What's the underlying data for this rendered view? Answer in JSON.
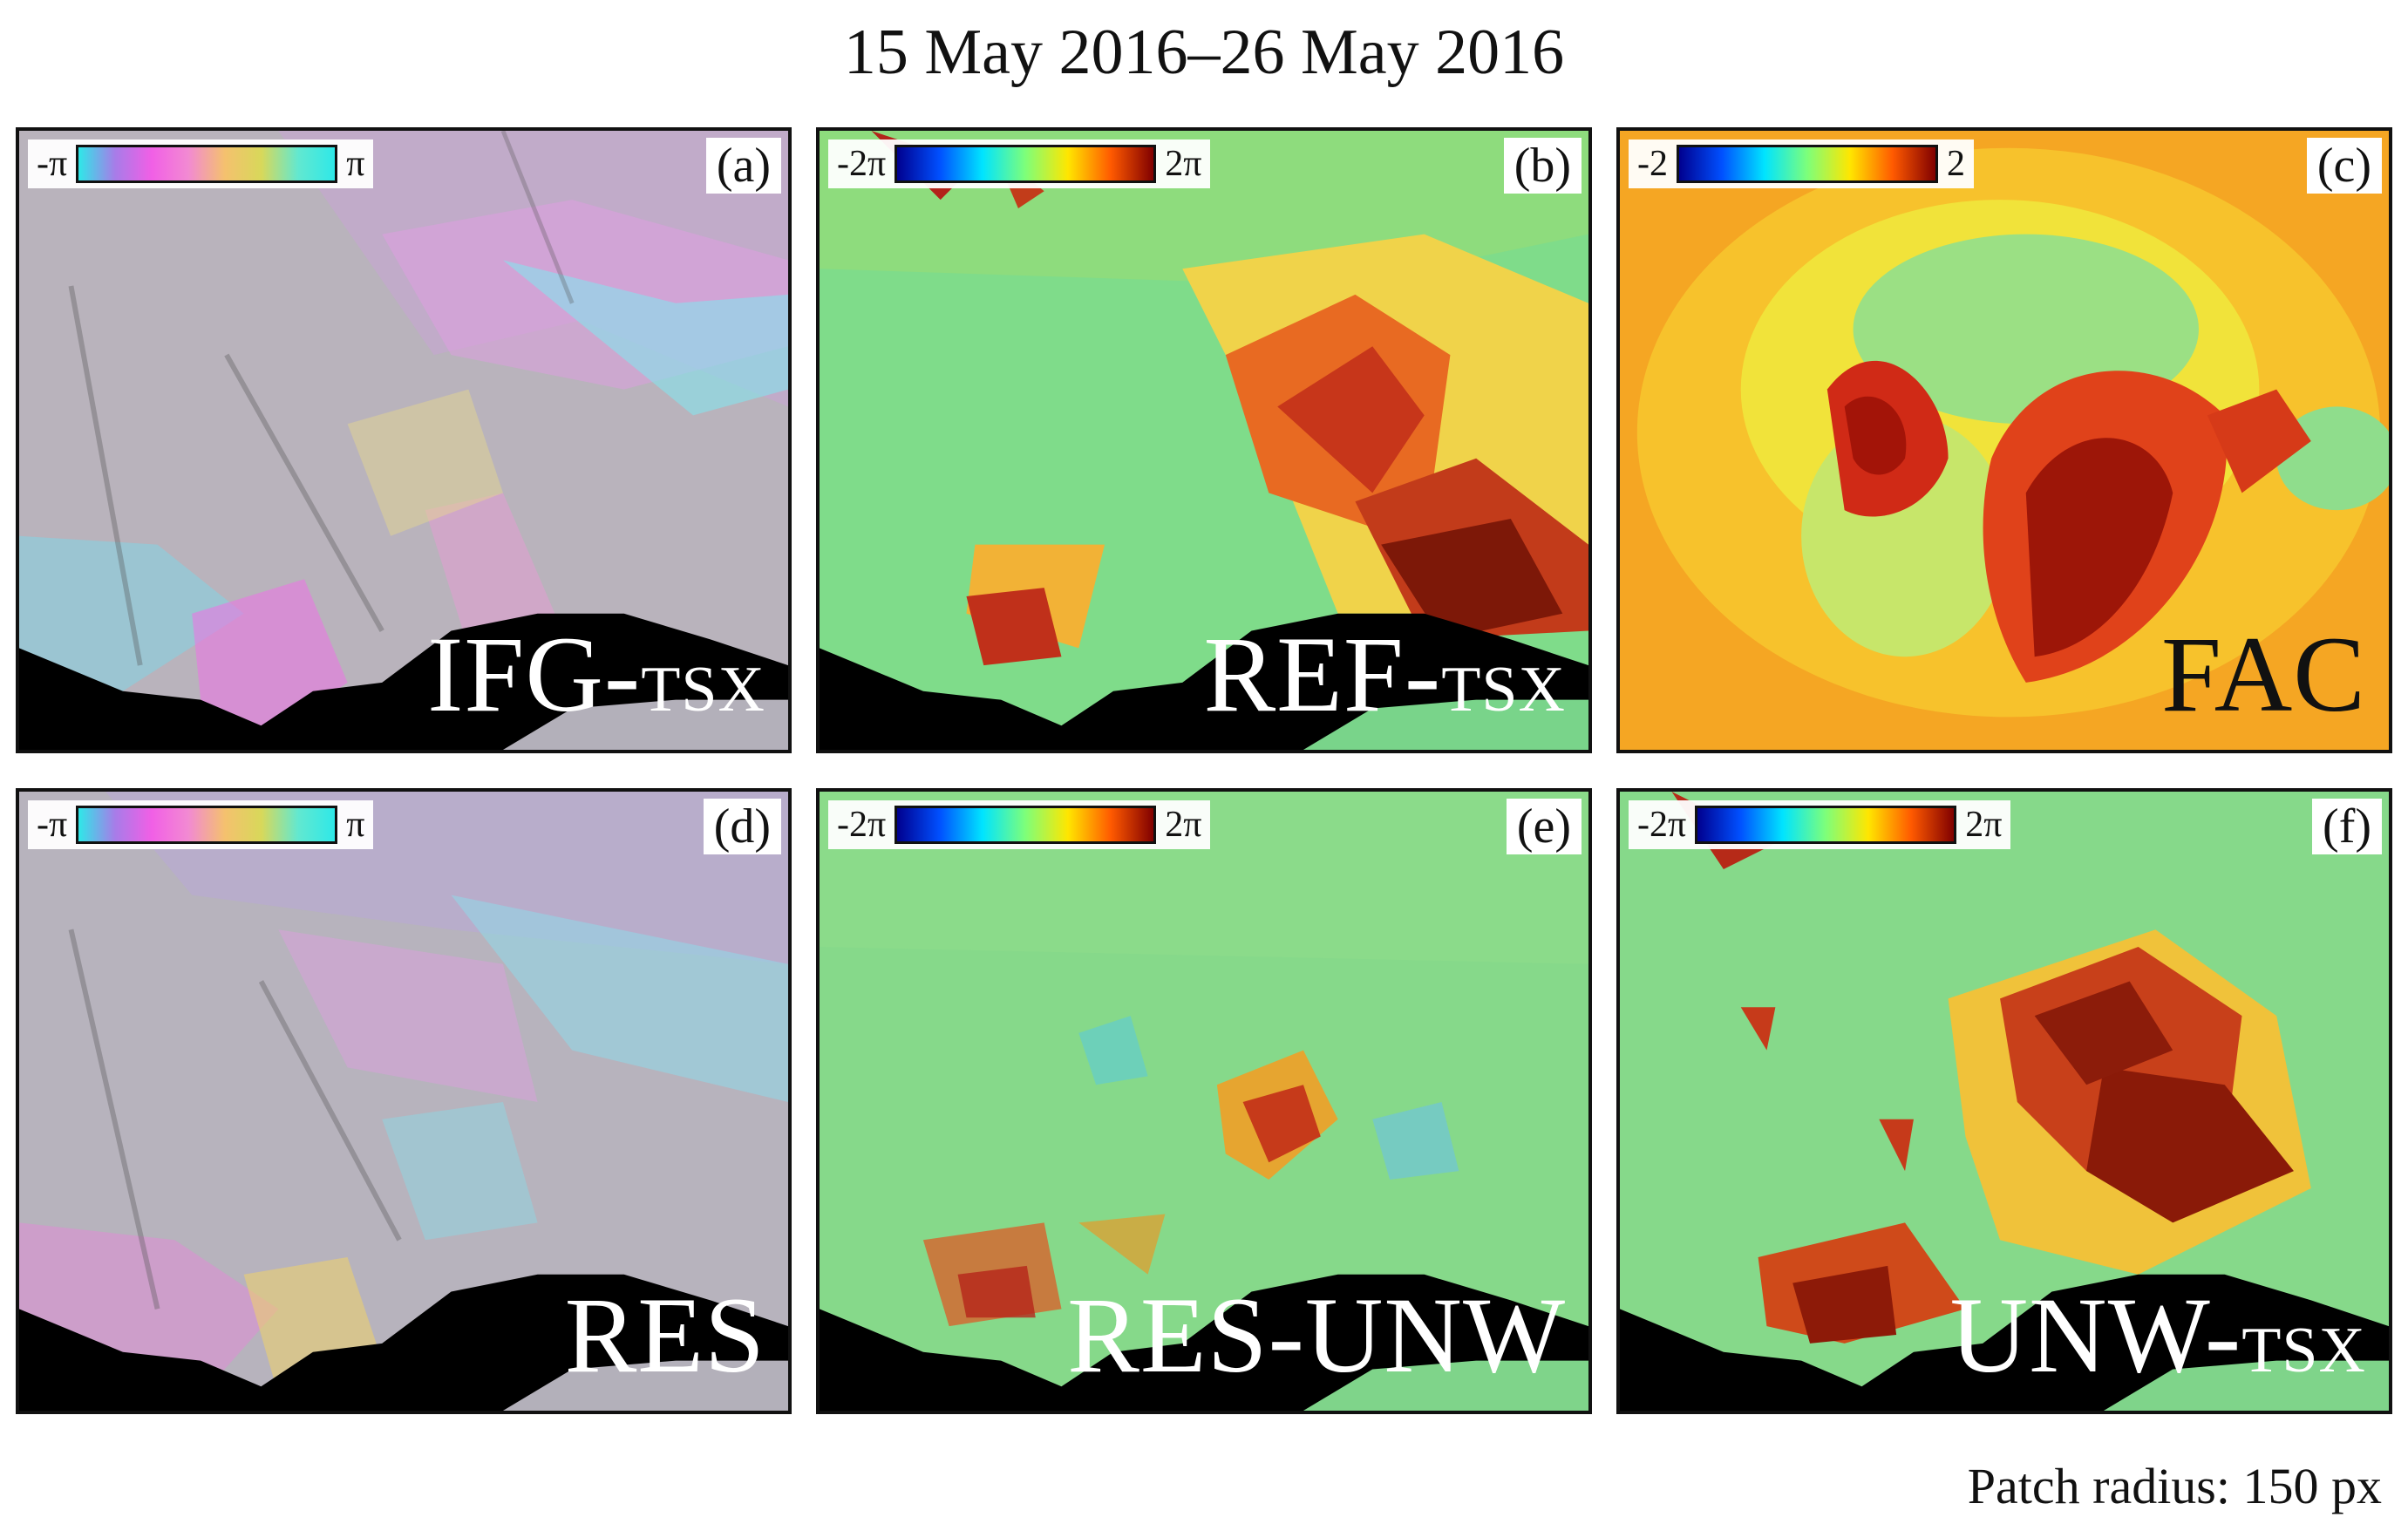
{
  "title": "15 May 2016–26 May 2016",
  "footer": "Patch radius: 150 px",
  "panels": [
    {
      "label": "(a)",
      "name": "IFG-",
      "sub": "TSX",
      "cmin": "-π",
      "cmax": "π",
      "scale": "wrapped"
    },
    {
      "label": "(b)",
      "name": "REF-",
      "sub": "TSX",
      "cmin": "-2π",
      "cmax": "2π",
      "scale": "jet"
    },
    {
      "label": "(c)",
      "name": "FAC",
      "sub": "",
      "cmin": "-2",
      "cmax": "2",
      "scale": "jet"
    },
    {
      "label": "(d)",
      "name": "RES",
      "sub": "",
      "cmin": "-π",
      "cmax": "π",
      "scale": "wrapped"
    },
    {
      "label": "(e)",
      "name": "RES-UNW",
      "sub": "",
      "cmin": "-2π",
      "cmax": "2π",
      "scale": "jet"
    },
    {
      "label": "(f)",
      "name": "UNW-",
      "sub": "TSX",
      "cmin": "-2π",
      "cmax": "2π",
      "scale": "jet"
    }
  ]
}
